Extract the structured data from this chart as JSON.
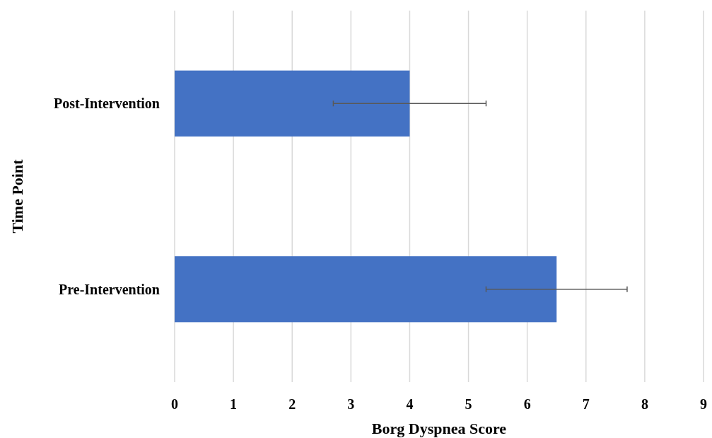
{
  "chart_data": {
    "type": "bar",
    "orientation": "horizontal",
    "xlabel": "Borg Dyspnea Score",
    "ylabel": "Time Point",
    "categories": [
      "Post-Intervention",
      "Pre-Intervention"
    ],
    "values": [
      4,
      6.5
    ],
    "errors": [
      1.3,
      1.2
    ],
    "color": "#4472c4",
    "xlim": [
      0,
      9
    ],
    "xticks": [
      0,
      1,
      2,
      3,
      4,
      5,
      6,
      7,
      8,
      9
    ],
    "grid": "x"
  }
}
